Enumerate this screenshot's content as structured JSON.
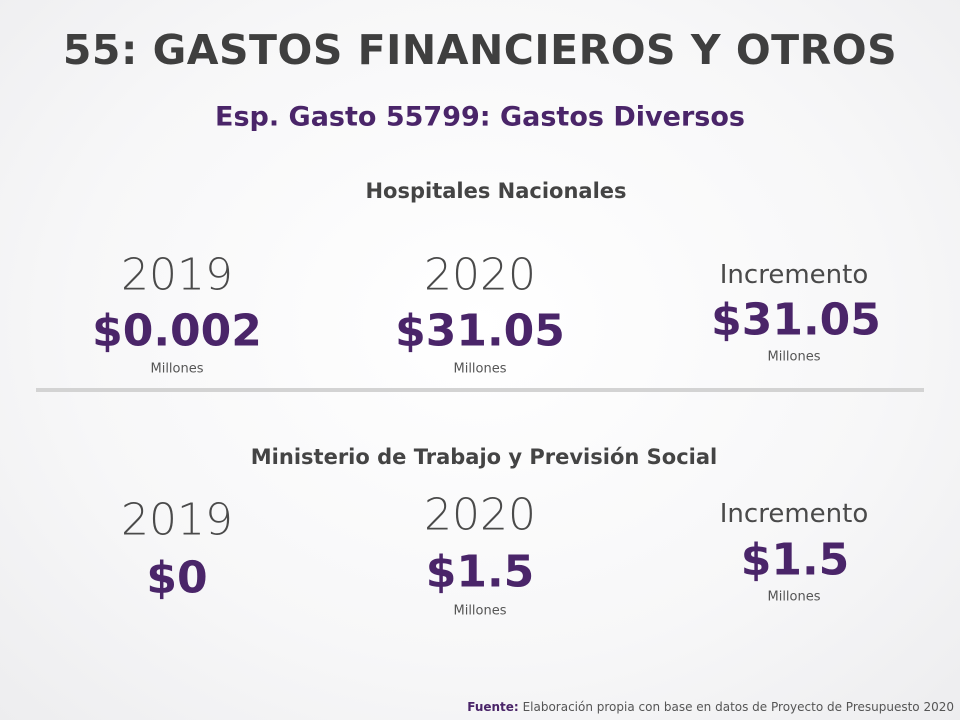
{
  "header": {
    "title": "55: GASTOS FINANCIEROS Y OTROS",
    "subtitle": "Esp. Gasto 55799: Gastos Diversos"
  },
  "sections": [
    {
      "title": "Hospitales Nacionales",
      "items": [
        {
          "label": "2019",
          "value": "$0.002",
          "unit": "Millones"
        },
        {
          "label": "2020",
          "value": "$31.05",
          "unit": "Millones"
        },
        {
          "label": "Incremento",
          "value": "$31.05",
          "unit": "Millones"
        }
      ]
    },
    {
      "title": "Ministerio de Trabajo y Previsión Social",
      "items": [
        {
          "label": "2019",
          "value": "$0"
        },
        {
          "label": "2020",
          "value": "$1.5",
          "unit": "Millones"
        },
        {
          "label": "Incremento",
          "value": "$1.5",
          "unit": "Millones"
        }
      ]
    }
  ],
  "footer": {
    "label": "Fuente:",
    "text": "Elaboración propia con base en datos de Proyecto de Presupuesto 2020"
  }
}
